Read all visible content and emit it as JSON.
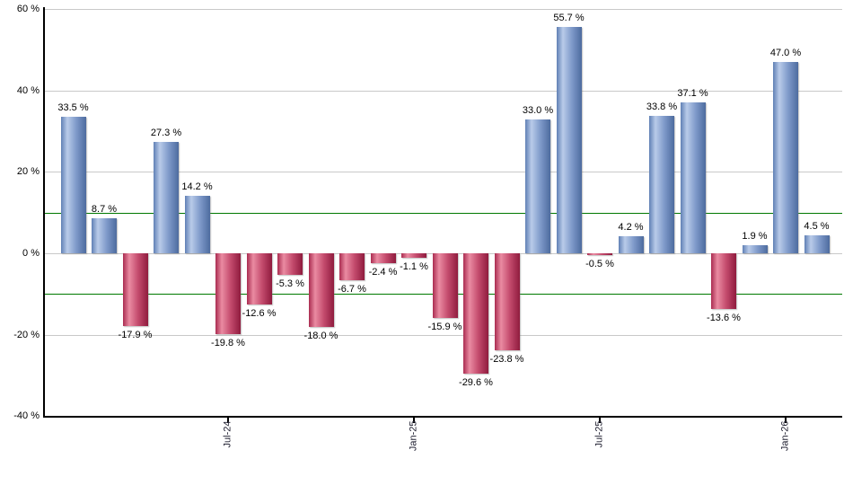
{
  "chart_data": {
    "type": "bar",
    "title": "",
    "xlabel": "",
    "ylabel": "",
    "ylim": [
      -40,
      60
    ],
    "grid": true,
    "legend": false,
    "background": "#ffffff",
    "values": [
      33.5,
      8.7,
      -17.9,
      27.3,
      14.2,
      -19.8,
      -12.6,
      -5.3,
      -18.0,
      -6.7,
      -2.4,
      -1.1,
      -15.9,
      -29.6,
      -23.8,
      33.0,
      55.7,
      -0.5,
      4.2,
      33.8,
      37.1,
      -13.6,
      1.9,
      47.0,
      4.5
    ],
    "value_labels": [
      "33.5 %",
      "8.7 %",
      "-17.9 %",
      "27.3 %",
      "14.2 %",
      "-19.8 %",
      "-12.6 %",
      "-5.3 %",
      "-18.0 %",
      "-6.7 %",
      "-2.4 %",
      "-1.1 %",
      "-15.9 %",
      "-29.6 %",
      "-23.8 %",
      "33.0 %",
      "55.7 %",
      "-0.5 %",
      "4.2 %",
      "33.8 %",
      "37.1 %",
      "-13.6 %",
      "1.9 %",
      "47.0 %",
      "4.5 %"
    ],
    "y_ticks": [
      {
        "value": 60,
        "label": "60 %"
      },
      {
        "value": 40,
        "label": "40 %"
      },
      {
        "value": 20,
        "label": "20 %"
      },
      {
        "value": 0,
        "label": "0 %"
      },
      {
        "value": -20,
        "label": "-20 %"
      },
      {
        "value": -40,
        "label": "-40 %"
      }
    ],
    "x_ticks": [
      {
        "bar_index": 5,
        "label": "Jul-24"
      },
      {
        "bar_index": 11,
        "label": "Jan-25"
      },
      {
        "bar_index": 17,
        "label": "Jul-25"
      },
      {
        "bar_index": 23,
        "label": "Jan-26"
      }
    ],
    "reference_lines": [
      {
        "value": 10,
        "color": "#007800"
      },
      {
        "value": -10,
        "color": "#007800"
      }
    ],
    "colors": {
      "positive_bar_gradient": [
        "#6080b5",
        "#b9cbe9",
        "#7f9aca",
        "#4d6b9e"
      ],
      "negative_bar_gradient": [
        "#aa2c50",
        "#ea8ba2",
        "#c44b6d",
        "#8f1b3e"
      ],
      "gridline": "#c9c9c9",
      "axis": "#000000",
      "value_label_text": "#000000",
      "tick_label_text": "#222233"
    }
  }
}
